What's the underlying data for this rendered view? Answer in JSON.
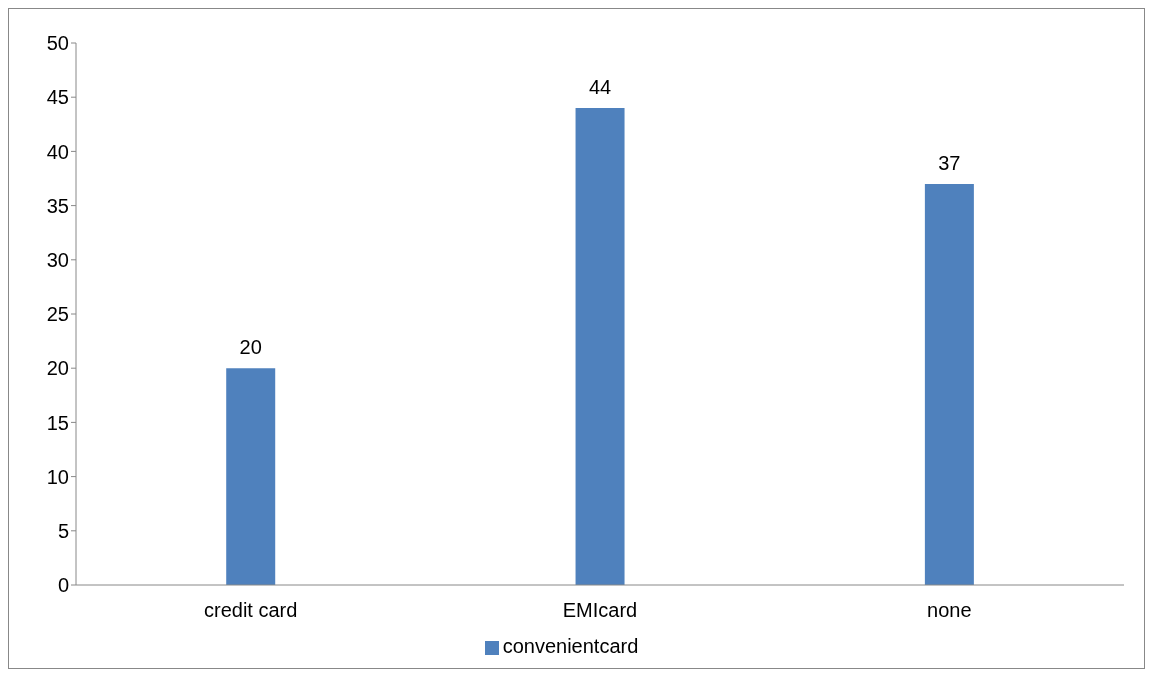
{
  "chart_data": {
    "type": "bar",
    "categories": [
      "credit card",
      "EMIcard",
      "none"
    ],
    "series": [
      {
        "name": "convenientcard",
        "color": "#4f81bd",
        "values": [
          20,
          44,
          37
        ]
      }
    ],
    "ylim": [
      0,
      50
    ],
    "yticks": [
      0,
      5,
      10,
      15,
      20,
      25,
      30,
      35,
      40,
      45,
      50
    ],
    "grid": false,
    "legend": "bottom",
    "data_labels": true
  }
}
